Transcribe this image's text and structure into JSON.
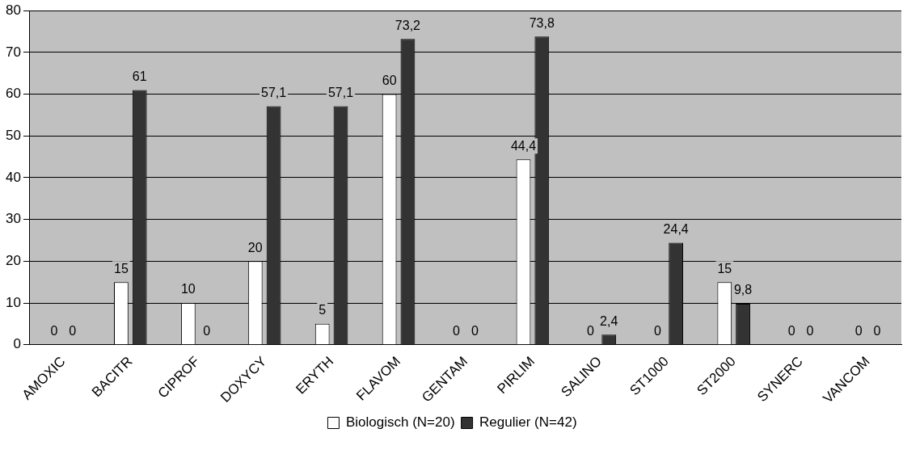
{
  "chart_data": {
    "type": "bar",
    "categories": [
      "AMOXIC",
      "BACITR",
      "CIPROF",
      "DOXYCY",
      "ERYTH",
      "FLAVOM",
      "GENTAM",
      "PIRLIM",
      "SALINO",
      "ST1000",
      "ST2000",
      "SYNERC",
      "VANCOM"
    ],
    "series": [
      {
        "name": "Biologisch (N=20)",
        "color": "#ffffff",
        "values": [
          0,
          15,
          10,
          20,
          5,
          60,
          0,
          44.4,
          0,
          0,
          15,
          0,
          0
        ],
        "value_labels": [
          "0",
          "15",
          "10",
          "20",
          "5",
          "60",
          "0",
          "44,4",
          "0",
          "0",
          "15",
          "0",
          "0"
        ]
      },
      {
        "name": "Regulier (N=42)",
        "color": "#333333",
        "values": [
          0,
          61,
          0,
          57.1,
          57.1,
          73.2,
          0,
          73.8,
          2.4,
          24.4,
          9.8,
          0,
          0
        ],
        "value_labels": [
          "0",
          "61",
          "0",
          "57,1",
          "57,1",
          "73,2",
          "0",
          "73,8",
          "2,4",
          "24,4",
          "9,8",
          "0",
          "0"
        ]
      }
    ],
    "ylim": [
      0,
      80
    ],
    "yticks": [
      0,
      10,
      20,
      30,
      40,
      50,
      60,
      70,
      80
    ],
    "grid": "y",
    "legend": "bottom"
  }
}
